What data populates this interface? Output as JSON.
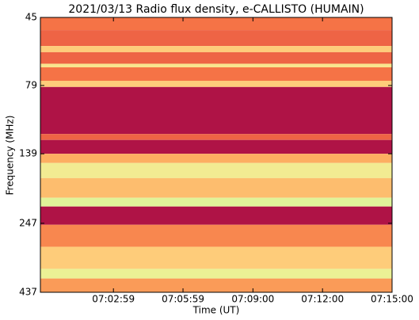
{
  "chart_data": {
    "type": "spectrogram",
    "title": "2021/03/13  Radio flux density, e-CALLISTO (HUMAIN)",
    "x_label": "Time (UT)",
    "y_label": "Frequency (MHz)",
    "xlim": [
      25190,
      26100
    ],
    "xticks": [
      {
        "value": 25379,
        "label": "07:02:59"
      },
      {
        "value": 25559,
        "label": "07:05:59"
      },
      {
        "value": 25740,
        "label": "07:09:00"
      },
      {
        "value": 25920,
        "label": "07:12:00"
      },
      {
        "value": 26100,
        "label": "07:15:00"
      }
    ],
    "ylim": [
      45,
      437
    ],
    "yticks": [
      45,
      79,
      139,
      247,
      437
    ],
    "y_log": true,
    "y_inverted": true,
    "colormap": [
      "#9e0142",
      "#d53e4f",
      "#f46d43",
      "#fdae61",
      "#fee08b",
      "#e6f598",
      "#abdda4"
    ],
    "bands": [
      {
        "freq": [
          45,
          50
        ],
        "intensity": 0.35
      },
      {
        "freq": [
          50,
          57
        ],
        "intensity": 0.3
      },
      {
        "freq": [
          57,
          60
        ],
        "intensity": 0.6
      },
      {
        "freq": [
          60,
          66
        ],
        "intensity": 0.3
      },
      {
        "freq": [
          66,
          68
        ],
        "intensity": 0.7
      },
      {
        "freq": [
          68,
          76
        ],
        "intensity": 0.35
      },
      {
        "freq": [
          76,
          80
        ],
        "intensity": 0.6
      },
      {
        "freq": [
          80,
          118
        ],
        "intensity": 0.05
      },
      {
        "freq": [
          118,
          124
        ],
        "intensity": 0.3
      },
      {
        "freq": [
          124,
          139
        ],
        "intensity": 0.05
      },
      {
        "freq": [
          139,
          150
        ],
        "intensity": 0.5
      },
      {
        "freq": [
          150,
          170
        ],
        "intensity": 0.75
      },
      {
        "freq": [
          170,
          200
        ],
        "intensity": 0.55
      },
      {
        "freq": [
          200,
          215
        ],
        "intensity": 0.85
      },
      {
        "freq": [
          215,
          250
        ],
        "intensity": 0.05
      },
      {
        "freq": [
          250,
          300
        ],
        "intensity": 0.4
      },
      {
        "freq": [
          300,
          360
        ],
        "intensity": 0.6
      },
      {
        "freq": [
          360,
          390
        ],
        "intensity": 0.8
      },
      {
        "freq": [
          390,
          437
        ],
        "intensity": 0.45
      }
    ]
  }
}
